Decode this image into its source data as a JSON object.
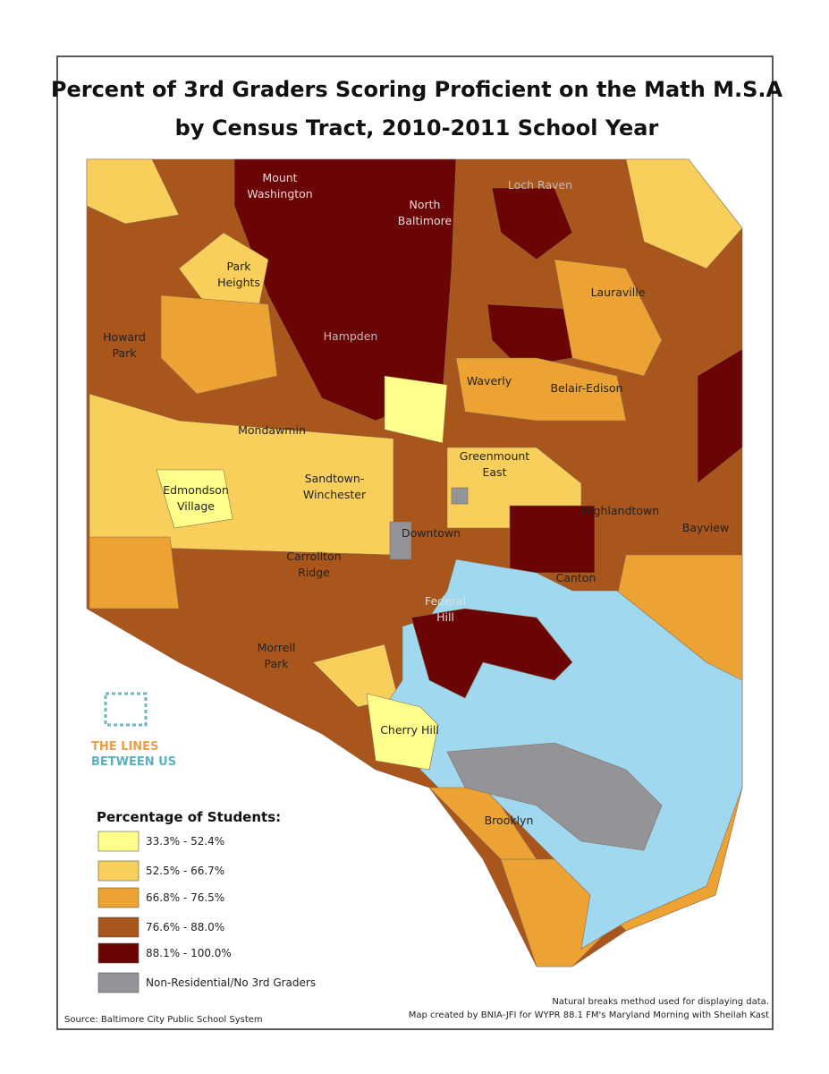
{
  "title": [
    "Percent of 3rd Graders Scoring Proficient on the Math M.S.A",
    "by Census Tract,  2010-2011 School Year"
  ],
  "labels": [
    [
      "Mount",
      "Washington"
    ],
    [
      "North",
      "Baltimore"
    ],
    [
      "Loch Raven"
    ],
    [
      "Park",
      "Heights"
    ],
    [
      "Lauraville"
    ],
    [
      "Howard",
      "Park"
    ],
    [
      "Hampden"
    ],
    [
      "Waverly"
    ],
    [
      "Belair-Edison"
    ],
    [
      "Mondawmin"
    ],
    [
      "Greenmount",
      "East"
    ],
    [
      "Edmondson",
      "Village"
    ],
    [
      "Sandtown-",
      "Winchester"
    ],
    [
      "Highlandtown"
    ],
    [
      "Downtown"
    ],
    [
      "Bayview"
    ],
    [
      "Carrollton",
      "Ridge"
    ],
    [
      "Canton"
    ],
    [
      "Federal",
      "Hill"
    ],
    [
      "Morrell",
      "Park"
    ],
    [
      "Cherry Hill"
    ],
    [
      "Brooklyn"
    ]
  ],
  "logo": [
    "THE LINES",
    "BETWEEN US"
  ],
  "legend": {
    "title": "Percentage of Students:",
    "items": [
      {
        "label": "33.3% - 52.4%",
        "color": "#ffff8c"
      },
      {
        "label": "52.5% - 66.7%",
        "color": "#f9cf5c"
      },
      {
        "label": "66.8% - 76.5%",
        "color": "#eda333"
      },
      {
        "label": "76.6% - 88.0%",
        "color": "#a8561c"
      },
      {
        "label": "88.1% - 100.0%",
        "color": "#6b0505"
      },
      {
        "label": "Non-Residential/No 3rd Graders",
        "color": "#939498"
      }
    ]
  },
  "notes": [
    "Natural breaks method used for displaying data.",
    "Map created by BNIA-JFI for WYPR 88.1 FM's Maryland Morning with Sheilah Kast"
  ],
  "source": "Source: Baltimore City Public School System"
}
